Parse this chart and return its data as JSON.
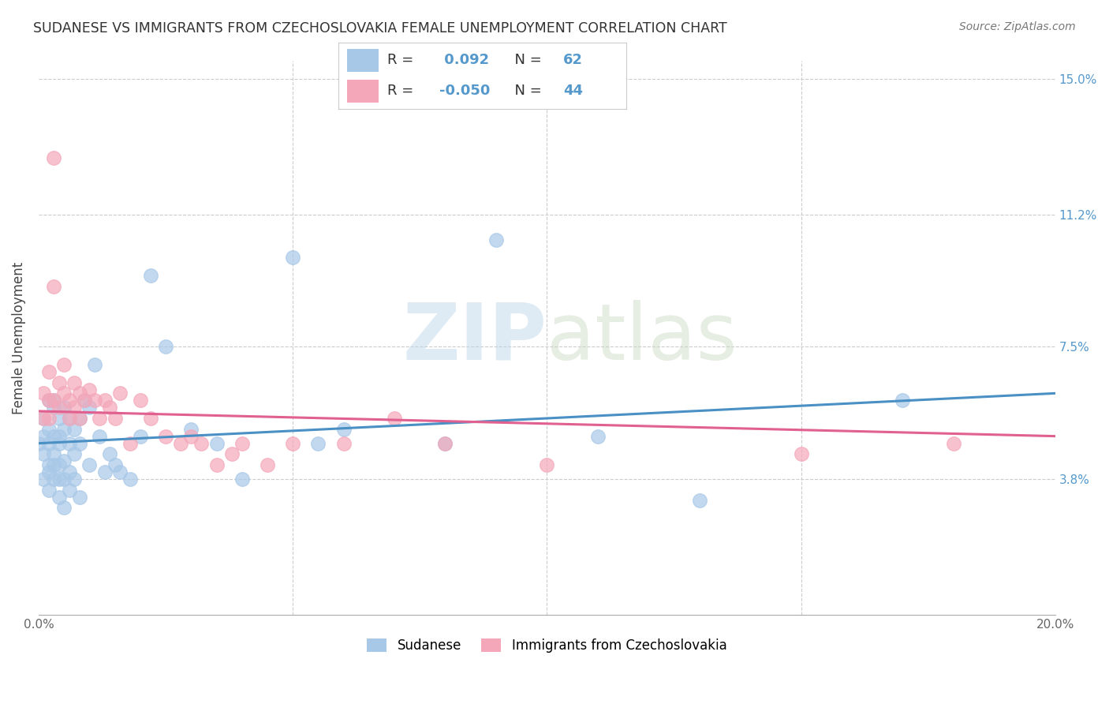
{
  "title": "SUDANESE VS IMMIGRANTS FROM CZECHOSLOVAKIA FEMALE UNEMPLOYMENT CORRELATION CHART",
  "source": "Source: ZipAtlas.com",
  "ylabel": "Female Unemployment",
  "x_min": 0.0,
  "x_max": 0.2,
  "y_min": 0.0,
  "y_max": 0.155,
  "y_ticks_right": [
    0.038,
    0.075,
    0.112,
    0.15
  ],
  "y_tick_labels_right": [
    "3.8%",
    "7.5%",
    "11.2%",
    "15.0%"
  ],
  "legend_label1": "Sudanese",
  "legend_label2": "Immigrants from Czechoslovakia",
  "R1": 0.092,
  "N1": 62,
  "R2": -0.05,
  "N2": 44,
  "color_blue": "#a8c8e8",
  "color_pink": "#f4a7b9",
  "watermark": "ZIPatlas",
  "sudanese_x": [
    0.0,
    0.001,
    0.001,
    0.001,
    0.001,
    0.002,
    0.002,
    0.002,
    0.002,
    0.002,
    0.002,
    0.003,
    0.003,
    0.003,
    0.003,
    0.003,
    0.003,
    0.004,
    0.004,
    0.004,
    0.004,
    0.004,
    0.004,
    0.005,
    0.005,
    0.005,
    0.005,
    0.005,
    0.006,
    0.006,
    0.006,
    0.006,
    0.007,
    0.007,
    0.007,
    0.008,
    0.008,
    0.008,
    0.009,
    0.01,
    0.01,
    0.011,
    0.012,
    0.013,
    0.014,
    0.015,
    0.016,
    0.018,
    0.02,
    0.022,
    0.025,
    0.03,
    0.035,
    0.04,
    0.05,
    0.055,
    0.06,
    0.08,
    0.09,
    0.11,
    0.13,
    0.17
  ],
  "sudanese_y": [
    0.048,
    0.055,
    0.045,
    0.038,
    0.05,
    0.06,
    0.052,
    0.042,
    0.035,
    0.048,
    0.04,
    0.058,
    0.05,
    0.042,
    0.045,
    0.038,
    0.06,
    0.055,
    0.048,
    0.042,
    0.038,
    0.05,
    0.033,
    0.058,
    0.052,
    0.043,
    0.038,
    0.03,
    0.055,
    0.048,
    0.04,
    0.035,
    0.052,
    0.045,
    0.038,
    0.055,
    0.048,
    0.033,
    0.06,
    0.058,
    0.042,
    0.07,
    0.05,
    0.04,
    0.045,
    0.042,
    0.04,
    0.038,
    0.05,
    0.095,
    0.075,
    0.052,
    0.048,
    0.038,
    0.1,
    0.048,
    0.052,
    0.048,
    0.105,
    0.05,
    0.032,
    0.06
  ],
  "czech_x": [
    0.001,
    0.001,
    0.002,
    0.002,
    0.002,
    0.003,
    0.003,
    0.003,
    0.004,
    0.004,
    0.005,
    0.005,
    0.006,
    0.006,
    0.007,
    0.007,
    0.008,
    0.008,
    0.009,
    0.01,
    0.011,
    0.012,
    0.013,
    0.014,
    0.015,
    0.016,
    0.018,
    0.02,
    0.022,
    0.025,
    0.028,
    0.03,
    0.032,
    0.035,
    0.038,
    0.04,
    0.045,
    0.05,
    0.06,
    0.07,
    0.08,
    0.1,
    0.15,
    0.18
  ],
  "czech_y": [
    0.062,
    0.055,
    0.068,
    0.06,
    0.055,
    0.128,
    0.092,
    0.06,
    0.065,
    0.058,
    0.07,
    0.062,
    0.06,
    0.055,
    0.065,
    0.058,
    0.062,
    0.055,
    0.06,
    0.063,
    0.06,
    0.055,
    0.06,
    0.058,
    0.055,
    0.062,
    0.048,
    0.06,
    0.055,
    0.05,
    0.048,
    0.05,
    0.048,
    0.042,
    0.045,
    0.048,
    0.042,
    0.048,
    0.048,
    0.055,
    0.048,
    0.042,
    0.045,
    0.048
  ]
}
